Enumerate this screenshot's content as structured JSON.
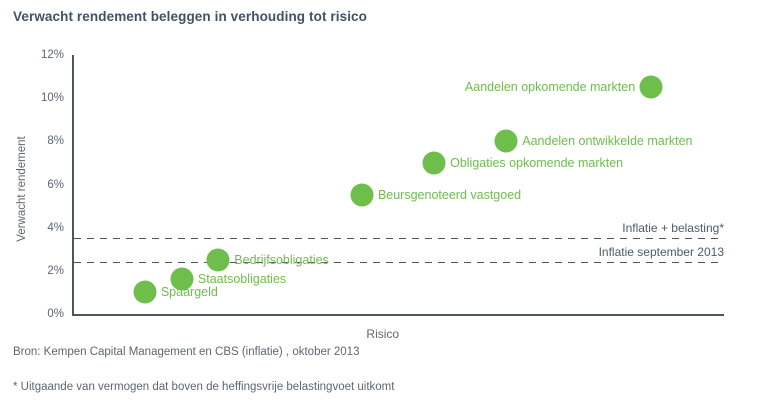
{
  "page": {
    "title": "Verwacht rendement beleggen in verhouding tot risico",
    "source": "Bron: Kempen Capital Management en CBS (inflatie) , oktober 2013",
    "footnote": "* Uitgaande van vermogen dat boven de heffingsvrije belastingvoet uitkomt"
  },
  "colors": {
    "background": "#ffffff",
    "title": "#3f5368",
    "axis": "#4c5661",
    "axis_text": "#5d6771",
    "reference_text": "#4c5c6a",
    "green": "#6ebe4c"
  },
  "chart_data": {
    "type": "scatter",
    "title": "Verwacht rendement beleggen in verhouding tot risico",
    "xlabel": "Risico",
    "ylabel": "Verwacht rendement",
    "ylim": [
      0,
      12
    ],
    "xlim": [
      0,
      1
    ],
    "grid": false,
    "legend": "none",
    "y_ticks": [
      {
        "value": 0,
        "label": "0%"
      },
      {
        "value": 2,
        "label": "2%"
      },
      {
        "value": 4,
        "label": "4%"
      },
      {
        "value": 6,
        "label": "6%"
      },
      {
        "value": 8,
        "label": "8%"
      },
      {
        "value": 10,
        "label": "10%"
      },
      {
        "value": 12,
        "label": "12%"
      }
    ],
    "points": [
      {
        "label": "Spaargeld",
        "risk": 0.109,
        "return_pct": 1.0,
        "label_side": "right"
      },
      {
        "label": "Staatsobligaties",
        "risk": 0.166,
        "return_pct": 1.6,
        "label_side": "right"
      },
      {
        "label": "Bedrijfsobligaties",
        "risk": 0.222,
        "return_pct": 2.5,
        "label_side": "right"
      },
      {
        "label": "Beursgenoteerd vastgoed",
        "risk": 0.443,
        "return_pct": 5.5,
        "label_side": "right"
      },
      {
        "label": "Obligaties opkomende markten",
        "risk": 0.554,
        "return_pct": 7.0,
        "label_side": "right"
      },
      {
        "label": "Aandelen ontwikkelde markten",
        "risk": 0.665,
        "return_pct": 8.0,
        "label_side": "right"
      },
      {
        "label": "Aandelen opkomende markten",
        "risk": 0.888,
        "return_pct": 10.5,
        "label_side": "left"
      }
    ],
    "reference_lines": [
      {
        "label": "Inflatie + belasting*",
        "value": 3.5
      },
      {
        "label": "Inflatie september 2013",
        "value": 2.4
      }
    ]
  }
}
